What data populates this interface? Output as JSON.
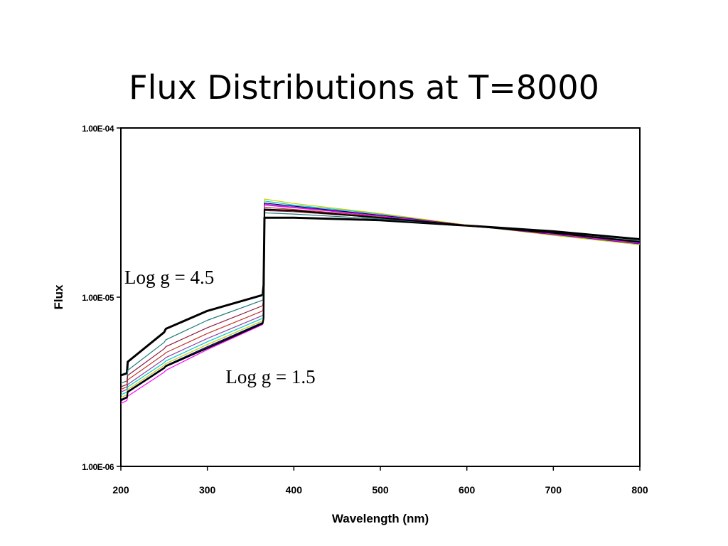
{
  "slide": {
    "title": "Flux Distributions at T=8000"
  },
  "chart_data": {
    "type": "line",
    "title": "Flux Distributions at T=8000",
    "xlabel": "Wavelength (nm)",
    "ylabel": "Flux",
    "xlim": [
      200,
      800
    ],
    "ylim": [
      1e-06,
      0.0001
    ],
    "yscale": "log",
    "xticks": [
      200,
      300,
      400,
      500,
      600,
      700,
      800
    ],
    "xtick_labels": [
      "200",
      "300",
      "400",
      "500",
      "600",
      "700",
      "800"
    ],
    "yticks": [
      1e-06,
      1e-05,
      0.0001
    ],
    "ytick_labels": [
      "1.00E-06",
      "1.00E-05",
      "1.00E-04"
    ],
    "grid": false,
    "annotations": [
      {
        "text": "Log g = 4.5",
        "x": 256,
        "y": 1.2e-05
      },
      {
        "text": "Log g = 1.5",
        "x": 373,
        "y": 3.1e-06
      }
    ],
    "series": [
      {
        "color": "#000000",
        "width": 3,
        "x": [
          200,
          207,
          208,
          250,
          252,
          300,
          364,
          365,
          366,
          400,
          500,
          600,
          700,
          800
        ],
        "y": [
          3.45e-06,
          3.55e-06,
          4.15e-06,
          6.2e-06,
          6.5e-06,
          8.3e-06,
          1.03e-05,
          1.18e-05,
          2.95e-05,
          2.95e-05,
          2.85e-05,
          2.65e-05,
          2.45e-05,
          2.2e-05
        ]
      },
      {
        "color": "#1f7a7a",
        "width": 1.2,
        "x": [
          200,
          207,
          208,
          250,
          252,
          300,
          364,
          365,
          366,
          400,
          500,
          600,
          700,
          800
        ],
        "y": [
          3.1e-06,
          3.2e-06,
          3.7e-06,
          5.4e-06,
          5.6e-06,
          7.3e-06,
          9.6e-06,
          1.1e-05,
          3.15e-05,
          3.1e-05,
          2.9e-05,
          2.65e-05,
          2.4e-05,
          2.15e-05
        ]
      },
      {
        "color": "#8b1a3a",
        "width": 1.2,
        "x": [
          200,
          207,
          208,
          250,
          252,
          300,
          364,
          365,
          366,
          400,
          500,
          600,
          700,
          800
        ],
        "y": [
          2.95e-06,
          3.05e-06,
          3.45e-06,
          4.95e-06,
          5.1e-06,
          6.6e-06,
          8.9e-06,
          1e-05,
          3.25e-05,
          3.2e-05,
          2.95e-05,
          2.65e-05,
          2.4e-05,
          2.12e-05
        ]
      },
      {
        "color": "#c0392b",
        "width": 1.2,
        "x": [
          200,
          207,
          208,
          250,
          252,
          300,
          364,
          365,
          366,
          400,
          500,
          600,
          700,
          800
        ],
        "y": [
          2.85e-06,
          2.95e-06,
          3.25e-06,
          4.6e-06,
          4.7e-06,
          6.1e-06,
          8.3e-06,
          9.3e-06,
          3.4e-05,
          3.3e-05,
          3e-05,
          2.66e-05,
          2.38e-05,
          2.1e-05
        ]
      },
      {
        "color": "#8e44ad",
        "width": 1.2,
        "x": [
          200,
          207,
          208,
          250,
          252,
          300,
          364,
          365,
          366,
          400,
          500,
          600,
          700,
          800
        ],
        "y": [
          2.75e-06,
          2.85e-06,
          3.05e-06,
          4.3e-06,
          4.4e-06,
          5.7e-06,
          7.8e-06,
          8.5e-06,
          3.55e-05,
          3.4e-05,
          3.05e-05,
          2.66e-05,
          2.36e-05,
          2.08e-05
        ]
      },
      {
        "color": "#00cccc",
        "width": 1.2,
        "x": [
          200,
          207,
          208,
          250,
          252,
          300,
          364,
          365,
          366,
          400,
          500,
          600,
          700,
          800
        ],
        "y": [
          2.65e-06,
          2.75e-06,
          2.95e-06,
          4.1e-06,
          4.2e-06,
          5.45e-06,
          7.5e-06,
          8.1e-06,
          3.7e-05,
          3.5e-05,
          3.1e-05,
          2.66e-05,
          2.34e-05,
          2.06e-05
        ]
      },
      {
        "color": "#cccc00",
        "width": 1.2,
        "x": [
          200,
          207,
          208,
          250,
          252,
          300,
          364,
          365,
          366,
          400,
          500,
          600,
          700,
          800
        ],
        "y": [
          2.55e-06,
          2.65e-06,
          2.85e-06,
          3.95e-06,
          4.05e-06,
          5.25e-06,
          7.25e-06,
          7.8e-06,
          3.8e-05,
          3.58e-05,
          3.12e-05,
          2.67e-05,
          2.32e-05,
          2.04e-05
        ]
      },
      {
        "color": "#000080",
        "width": 1.2,
        "x": [
          200,
          207,
          208,
          250,
          252,
          300,
          364,
          365,
          366,
          400,
          500,
          600,
          700,
          800
        ],
        "y": [
          2.48e-06,
          2.58e-06,
          2.78e-06,
          3.85e-06,
          3.95e-06,
          5.1e-06,
          7.1e-06,
          7.6e-06,
          3.6e-05,
          3.45e-05,
          3.05e-05,
          2.66e-05,
          2.35e-05,
          2.07e-05
        ]
      },
      {
        "color": "#ff00ff",
        "width": 1.2,
        "x": [
          200,
          207,
          208,
          250,
          252,
          300,
          364,
          365,
          366,
          400,
          500,
          600,
          700,
          800
        ],
        "y": [
          2.35e-06,
          2.45e-06,
          2.6e-06,
          3.6e-06,
          3.7e-06,
          4.9e-06,
          6.9e-06,
          7.4e-06,
          3.5e-05,
          3.38e-05,
          3.02e-05,
          2.66e-05,
          2.36e-05,
          2.08e-05
        ]
      },
      {
        "color": "#000000",
        "width": 2.2,
        "x": [
          200,
          207,
          208,
          250,
          252,
          300,
          364,
          365,
          366,
          400,
          500,
          600,
          700,
          800
        ],
        "y": [
          2.45e-06,
          2.55e-06,
          2.75e-06,
          3.8e-06,
          3.9e-06,
          5e-06,
          7e-06,
          7.5e-06,
          3.3e-05,
          3.25e-05,
          2.95e-05,
          2.65e-05,
          2.4e-05,
          2.12e-05
        ]
      }
    ]
  }
}
